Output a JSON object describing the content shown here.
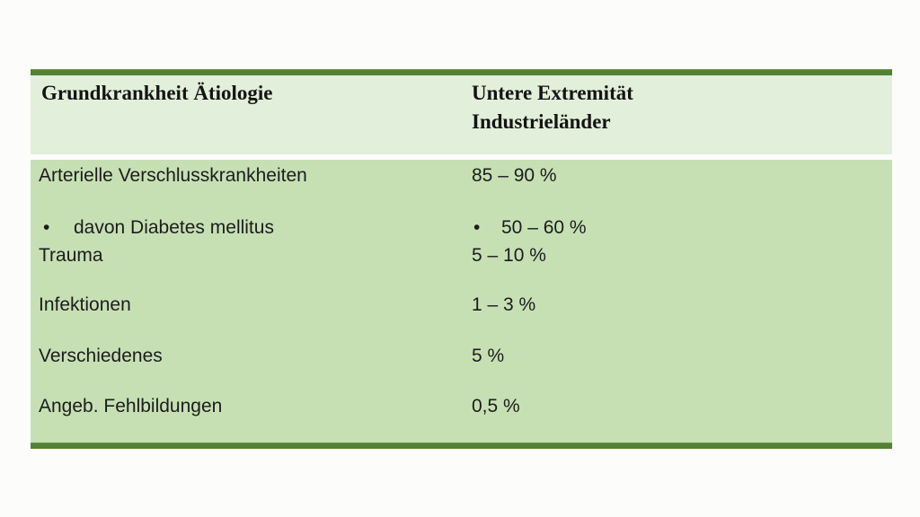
{
  "table": {
    "colors": {
      "border": "#538135",
      "header_bg": "#e2efda",
      "body_bg": "#c6e0b4",
      "text": "#1c1c1c",
      "page_bg": "#fcfcfa"
    },
    "bullet_glyph": "•",
    "header": {
      "col1": "Grundkrankheit Ätiologie",
      "col2_line1": "Untere Extremität",
      "col2_line2": "Industrieländer"
    },
    "rows": [
      {
        "label": "Arterielle Verschlusskrankheiten",
        "value": "85 – 90 %",
        "bullet": false
      },
      {
        "label": "davon Diabetes mellitus",
        "value": "50 – 60 %",
        "bullet": true
      },
      {
        "label": "Trauma",
        "value": "5 – 10 %",
        "bullet": false
      },
      {
        "label": "Infektionen",
        "value": "1 – 3 %",
        "bullet": false
      },
      {
        "label": "Verschiedenes",
        "value": "5 %",
        "bullet": false
      },
      {
        "label": "Angeb. Fehlbildungen",
        "value": "0,5 %",
        "bullet": false
      }
    ]
  }
}
